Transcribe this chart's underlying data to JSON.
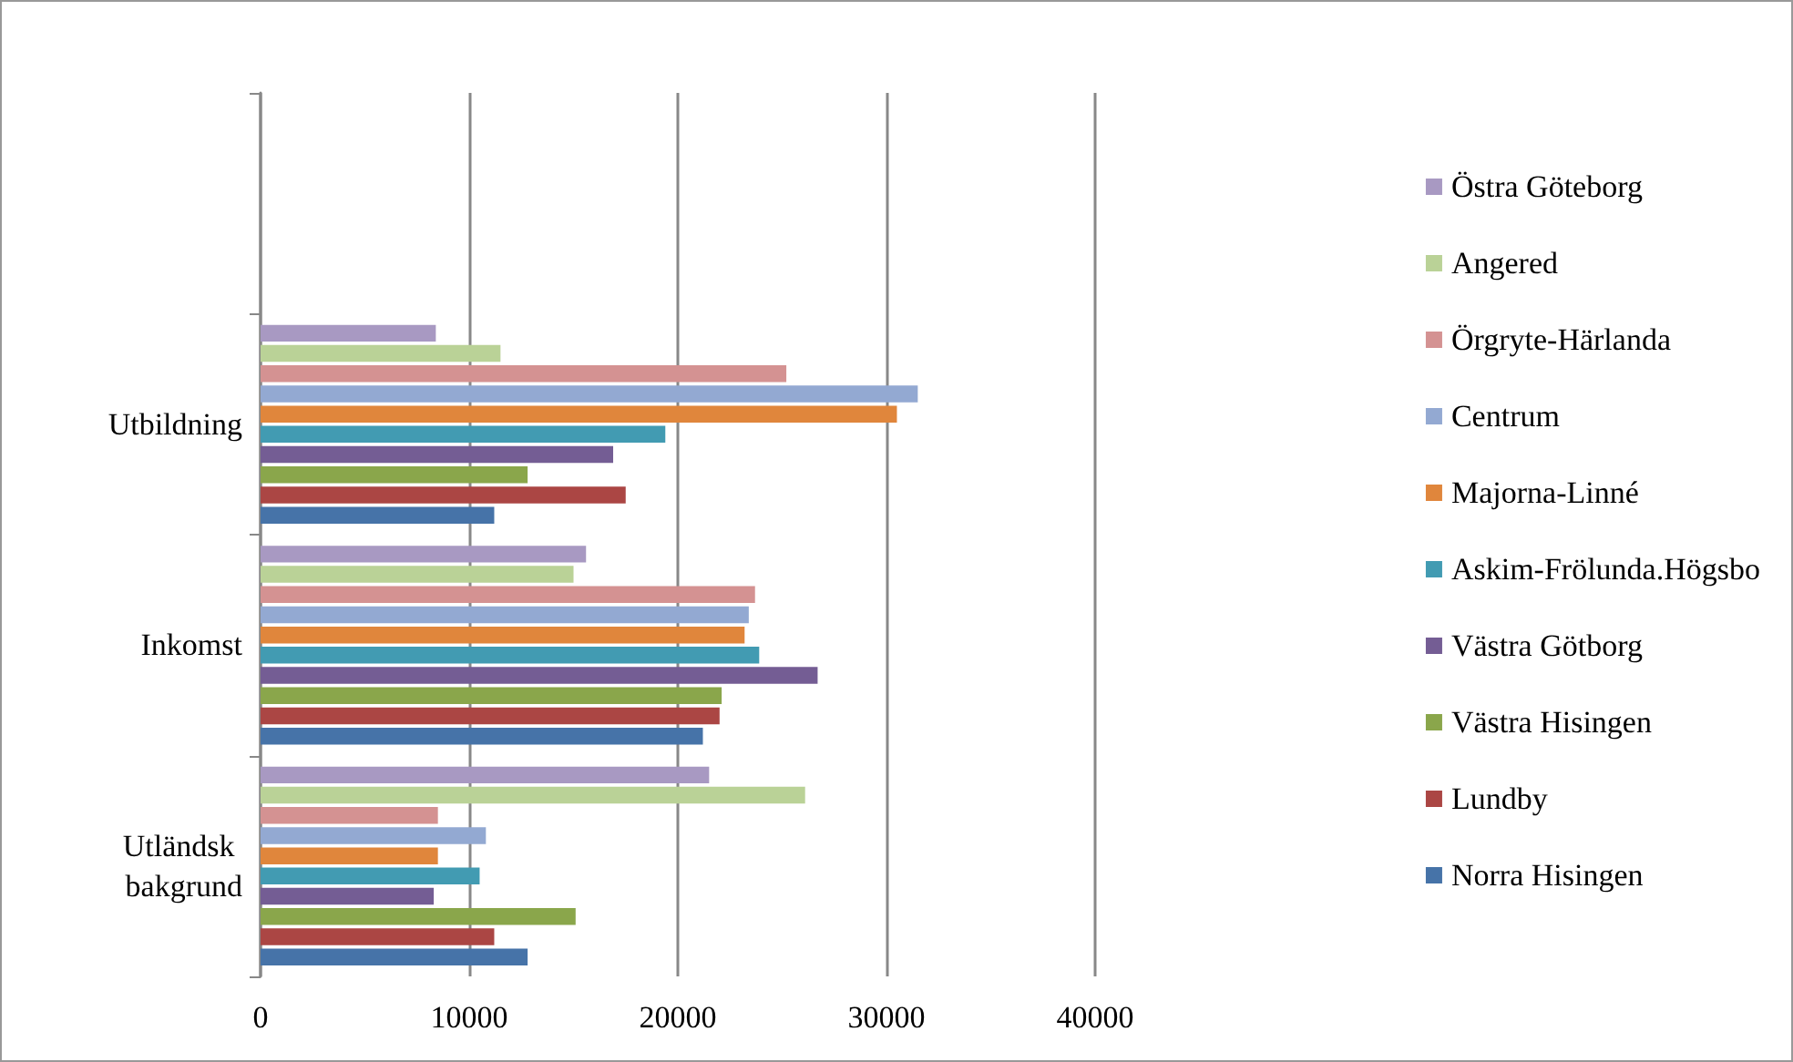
{
  "chart_data": {
    "type": "bar",
    "orientation": "horizontal",
    "categories": [
      null,
      "Utbildning",
      "Inkomst",
      "Utländsk bakgrund"
    ],
    "series": [
      {
        "name": "Östra Göteborg",
        "color": "#a899c2",
        "values": [
          null,
          8400,
          15600,
          21500
        ]
      },
      {
        "name": "Angered",
        "color": "#bad297",
        "values": [
          null,
          11500,
          15000,
          26100
        ]
      },
      {
        "name": "Örgryte-Härlanda",
        "color": "#d49292",
        "values": [
          null,
          25200,
          23700,
          8500
        ]
      },
      {
        "name": "Centrum",
        "color": "#93a9d2",
        "values": [
          null,
          31500,
          23400,
          10800
        ]
      },
      {
        "name": "Majorna-Linné",
        "color": "#e0863c",
        "values": [
          null,
          30500,
          23200,
          8500
        ]
      },
      {
        "name": "Askim-Frölunda.Högsbo",
        "color": "#429bb2",
        "values": [
          null,
          19400,
          23900,
          10500
        ]
      },
      {
        "name": "Västra Götborg",
        "color": "#745d94",
        "values": [
          null,
          16900,
          26700,
          8300
        ]
      },
      {
        "name": "Västra Hisingen",
        "color": "#8aa64b",
        "values": [
          null,
          12800,
          22100,
          15100
        ]
      },
      {
        "name": "Lundby",
        "color": "#ab4644",
        "values": [
          null,
          17500,
          22000,
          11200
        ]
      },
      {
        "name": "Norra Hisingen",
        "color": "#4673a8",
        "values": [
          null,
          11200,
          21200,
          12800
        ]
      }
    ],
    "xlim": [
      0,
      40000
    ],
    "xticks": [
      0,
      10000,
      20000,
      30000,
      40000
    ],
    "grid": "x",
    "legend": "right"
  }
}
